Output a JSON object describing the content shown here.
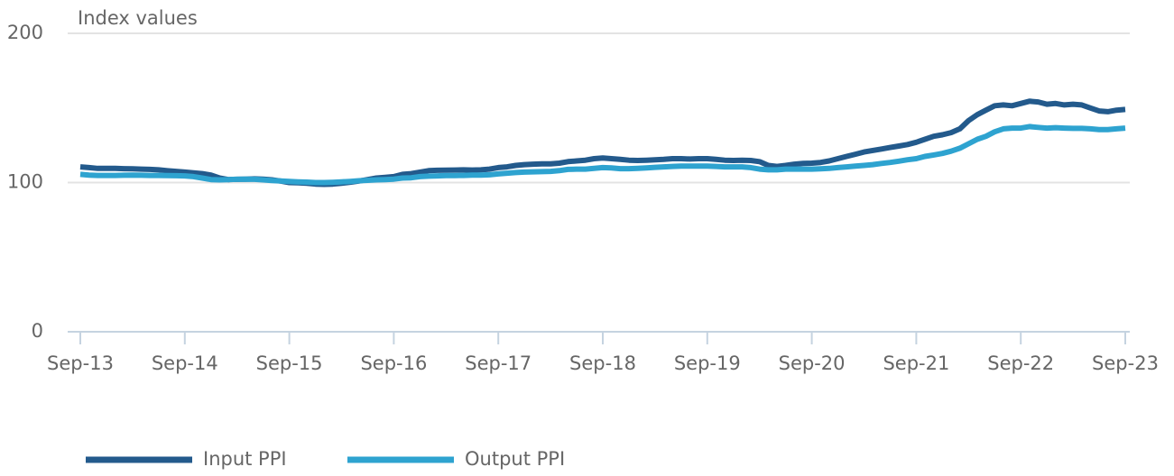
{
  "chart_data": {
    "type": "line",
    "title": "Index values",
    "categories": [
      "Sep-13",
      null,
      null,
      null,
      null,
      null,
      null,
      null,
      null,
      null,
      null,
      null,
      "Sep-14",
      null,
      null,
      null,
      null,
      null,
      null,
      null,
      null,
      null,
      null,
      null,
      "Sep-15",
      null,
      null,
      null,
      null,
      null,
      null,
      null,
      null,
      null,
      null,
      null,
      "Sep-16",
      null,
      null,
      null,
      null,
      null,
      null,
      null,
      null,
      null,
      null,
      null,
      "Sep-17",
      null,
      null,
      null,
      null,
      null,
      null,
      null,
      null,
      null,
      null,
      null,
      "Sep-18",
      null,
      null,
      null,
      null,
      null,
      null,
      null,
      null,
      null,
      null,
      null,
      "Sep-19",
      null,
      null,
      null,
      null,
      null,
      null,
      null,
      null,
      null,
      null,
      null,
      "Sep-20",
      null,
      null,
      null,
      null,
      null,
      null,
      null,
      null,
      null,
      null,
      null,
      "Sep-21",
      null,
      null,
      null,
      null,
      null,
      null,
      null,
      null,
      null,
      null,
      null,
      "Sep-22",
      null,
      null,
      null,
      null,
      null,
      null,
      null,
      null,
      null,
      null,
      null,
      "Sep-23"
    ],
    "series": [
      {
        "name": "Input PPI",
        "color": "#235a8c",
        "values": [
          110.5,
          110,
          109.5,
          109.5,
          109.5,
          109.3,
          109.2,
          109,
          108.8,
          108.5,
          108,
          107.5,
          107,
          106.5,
          106,
          105,
          103,
          102,
          102.2,
          102.3,
          102.5,
          102.3,
          101.8,
          101,
          100,
          99.8,
          99.5,
          99,
          98.8,
          99,
          99.5,
          100.2,
          101,
          102,
          103,
          103.5,
          104,
          105.5,
          106,
          107,
          108,
          108.2,
          108.3,
          108.4,
          108.5,
          108.4,
          108.5,
          109,
          110,
          110.5,
          111.5,
          112,
          112.3,
          112.5,
          112.5,
          113,
          114,
          114.5,
          115,
          116,
          116.5,
          116,
          115.5,
          115,
          114.8,
          115,
          115.2,
          115.5,
          116,
          116,
          115.8,
          116,
          116,
          115.5,
          115,
          114.8,
          115,
          114.8,
          114,
          111.5,
          110.8,
          111.5,
          112.3,
          112.8,
          113,
          113.5,
          114.5,
          116,
          117.5,
          119,
          120.5,
          121.5,
          122.5,
          123.5,
          124.5,
          125.5,
          127,
          129,
          131,
          132,
          133.5,
          136,
          141.5,
          145.5,
          148.5,
          151.5,
          152,
          151.5,
          153,
          154.5,
          154,
          152.5,
          153,
          152,
          152.5,
          152,
          150,
          148,
          147.5,
          148.5,
          149
        ]
      },
      {
        "name": "Output PPI",
        "color": "#2ea3d0",
        "values": [
          105.5,
          105,
          104.8,
          104.8,
          104.8,
          104.9,
          105,
          104.9,
          104.8,
          104.8,
          104.7,
          104.6,
          104.5,
          104,
          103,
          102,
          101.8,
          102,
          102.2,
          102.3,
          102.2,
          101.8,
          101.3,
          101,
          100.8,
          100.5,
          100.3,
          100,
          100,
          100.2,
          100.5,
          100.8,
          101.2,
          101.5,
          101.8,
          102,
          102.3,
          103,
          103.2,
          104,
          104.3,
          104.5,
          104.7,
          104.7,
          104.8,
          105,
          105,
          105.2,
          105.8,
          106.3,
          106.7,
          107,
          107.2,
          107.3,
          107.5,
          108,
          108.8,
          109,
          109,
          109.5,
          110,
          109.8,
          109.3,
          109.3,
          109.5,
          109.8,
          110.2,
          110.5,
          110.8,
          111,
          111,
          111,
          111,
          110.8,
          110.5,
          110.5,
          110.5,
          110,
          109,
          108.5,
          108.5,
          109,
          109,
          109,
          109,
          109.2,
          109.5,
          110,
          110.5,
          111,
          111.5,
          112,
          112.8,
          113.5,
          114.3,
          115.3,
          116,
          117.5,
          118.5,
          119.5,
          121,
          123,
          126,
          129,
          131,
          134,
          136,
          136.5,
          136.5,
          137.5,
          137,
          136.5,
          136.8,
          136.5,
          136.3,
          136.3,
          136,
          135.5,
          135.5,
          136,
          136.5
        ]
      }
    ],
    "ylim": [
      0,
      200
    ],
    "yticks": [
      0,
      100,
      200
    ],
    "grid": true,
    "legend": "bottom"
  }
}
